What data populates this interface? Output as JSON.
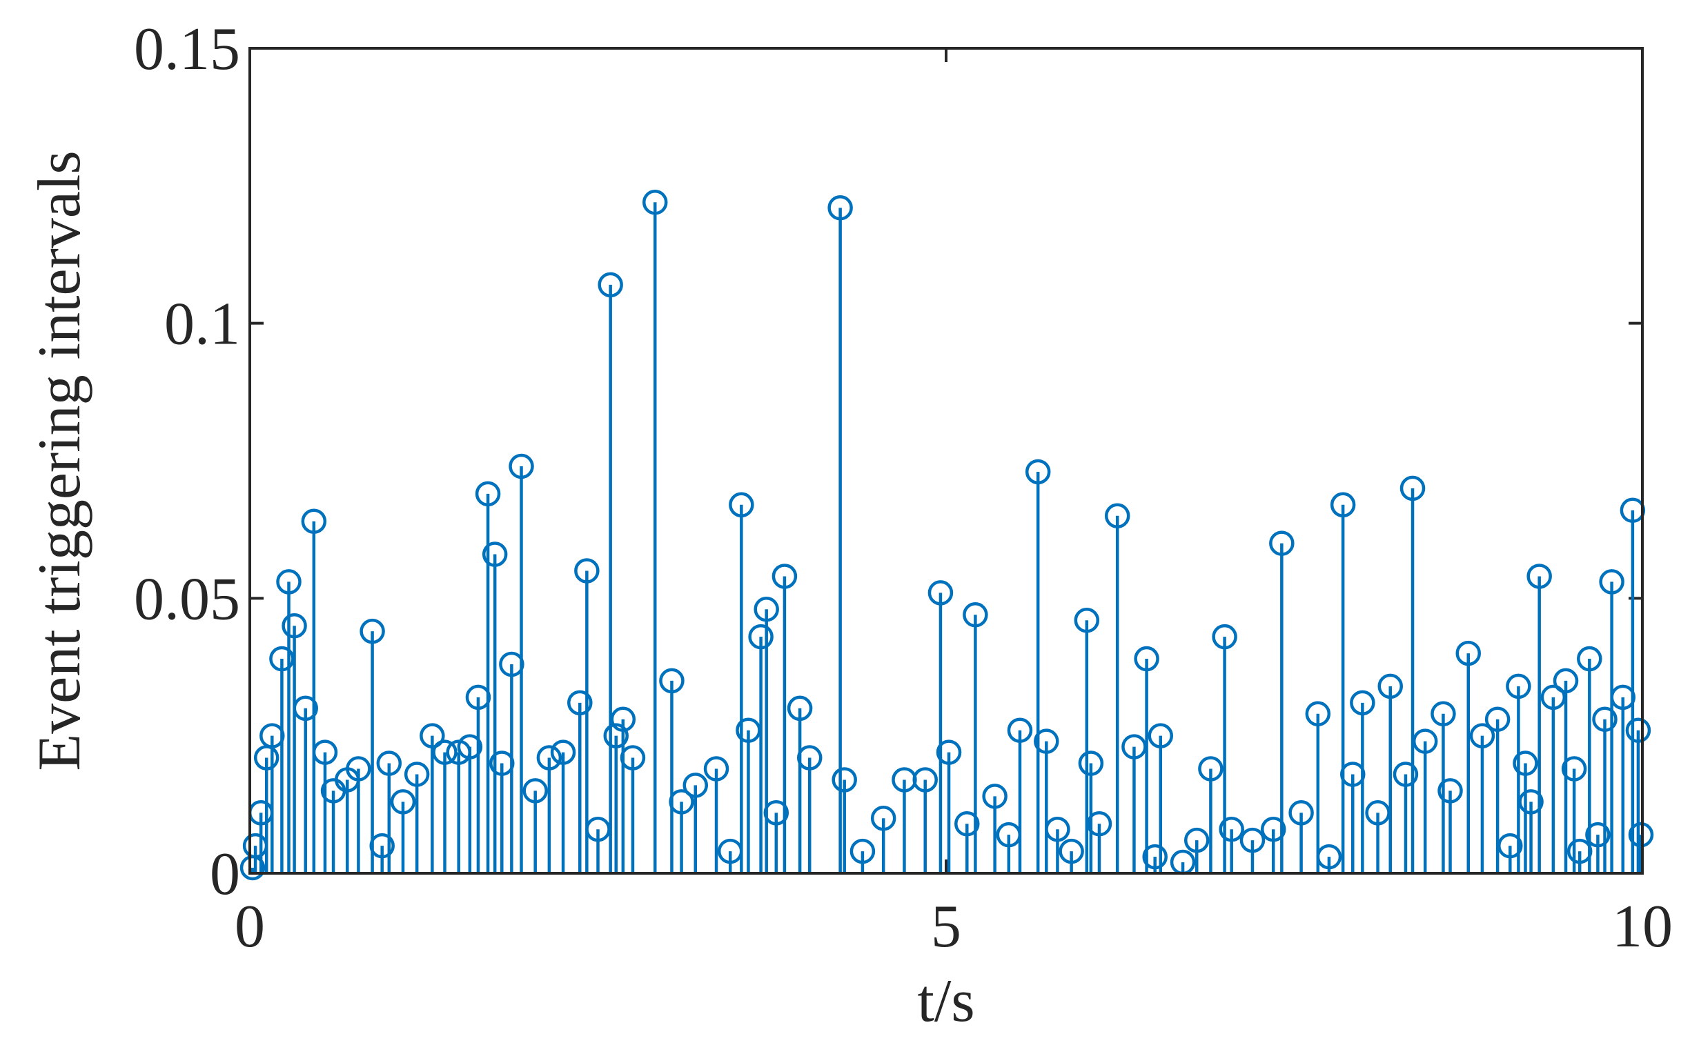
{
  "chart_data": {
    "type": "stem",
    "xlabel": "t/s",
    "ylabel": "Event triggering intervals",
    "color": "#0072BD",
    "x": [
      0.02,
      0.04,
      0.08,
      0.12,
      0.16,
      0.23,
      0.28,
      0.32,
      0.4,
      0.46,
      0.54,
      0.6,
      0.7,
      0.78,
      0.88,
      0.95,
      1.0,
      1.1,
      1.2,
      1.31,
      1.4,
      1.5,
      1.58,
      1.64,
      1.71,
      1.76,
      1.81,
      1.88,
      1.95,
      2.05,
      2.15,
      2.25,
      2.37,
      2.42,
      2.5,
      2.59,
      2.63,
      2.68,
      2.75,
      2.91,
      3.03,
      3.1,
      3.2,
      3.35,
      3.45,
      3.53,
      3.58,
      3.67,
      3.71,
      3.78,
      3.84,
      3.95,
      4.02,
      4.24,
      4.27,
      4.4,
      4.55,
      4.7,
      4.85,
      4.96,
      5.02,
      5.15,
      5.21,
      5.35,
      5.45,
      5.53,
      5.66,
      5.72,
      5.8,
      5.9,
      6.01,
      6.04,
      6.1,
      6.23,
      6.35,
      6.44,
      6.5,
      6.54,
      6.7,
      6.8,
      6.9,
      7.0,
      7.05,
      7.2,
      7.35,
      7.41,
      7.55,
      7.67,
      7.75,
      7.85,
      7.92,
      7.99,
      8.1,
      8.19,
      8.3,
      8.35,
      8.44,
      8.57,
      8.62,
      8.75,
      8.85,
      8.96,
      9.05,
      9.11,
      9.16,
      9.2,
      9.26,
      9.36,
      9.45,
      9.51,
      9.55,
      9.62,
      9.68,
      9.73,
      9.78,
      9.86,
      9.93,
      9.97,
      9.99
    ],
    "values": [
      0.001,
      0.005,
      0.011,
      0.021,
      0.025,
      0.039,
      0.053,
      0.045,
      0.03,
      0.064,
      0.022,
      0.015,
      0.017,
      0.019,
      0.044,
      0.005,
      0.02,
      0.013,
      0.018,
      0.025,
      0.022,
      0.022,
      0.023,
      0.032,
      0.069,
      0.058,
      0.02,
      0.038,
      0.074,
      0.015,
      0.021,
      0.022,
      0.031,
      0.055,
      0.008,
      0.107,
      0.025,
      0.028,
      0.021,
      0.122,
      0.035,
      0.013,
      0.016,
      0.019,
      0.004,
      0.067,
      0.026,
      0.043,
      0.048,
      0.011,
      0.054,
      0.03,
      0.021,
      0.121,
      0.017,
      0.004,
      0.01,
      0.017,
      0.017,
      0.051,
      0.022,
      0.009,
      0.047,
      0.014,
      0.007,
      0.026,
      0.073,
      0.024,
      0.008,
      0.004,
      0.046,
      0.02,
      0.009,
      0.065,
      0.023,
      0.039,
      0.003,
      0.025,
      0.002,
      0.006,
      0.019,
      0.043,
      0.008,
      0.006,
      0.008,
      0.06,
      0.011,
      0.029,
      0.003,
      0.067,
      0.018,
      0.031,
      0.011,
      0.034,
      0.018,
      0.07,
      0.024,
      0.029,
      0.015,
      0.04,
      0.025,
      0.028,
      0.005,
      0.034,
      0.02,
      0.013,
      0.054,
      0.032,
      0.035,
      0.019,
      0.004,
      0.039,
      0.007,
      0.028,
      0.053,
      0.032,
      0.066,
      0.026,
      0.007
    ],
    "xlim": [
      0,
      10
    ],
    "xticks": [
      0,
      5,
      10
    ],
    "ylim": [
      0,
      0.15
    ],
    "yticks": [
      0,
      0.05,
      0.1,
      0.15
    ]
  }
}
